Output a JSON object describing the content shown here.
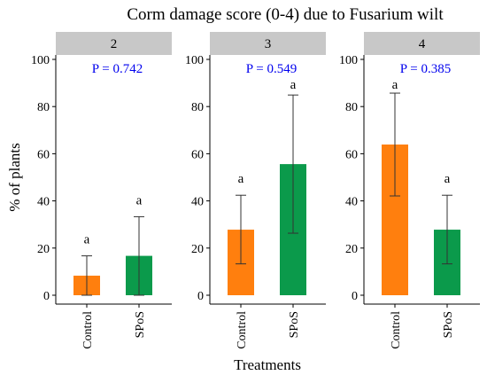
{
  "chart_data": {
    "type": "bar",
    "title": "Corm damage score (0-4) due to Fusarium wilt",
    "xlabel": "Treatments",
    "ylabel": "% of plants",
    "ylim": [
      0,
      100
    ],
    "yticks": [
      "0",
      "20",
      "40",
      "60",
      "80",
      "100"
    ],
    "categories": [
      "Control",
      "SPoS"
    ],
    "colors": {
      "Control": "#ff7f0e",
      "SPoS": "#0b9a4b",
      "pval": "#0000ee",
      "strip": "#c8c8c8"
    },
    "panels": [
      {
        "facet": "2",
        "p_label": "P = 0.742",
        "values": [
          8.3,
          16.7
        ],
        "error_low": [
          0,
          0
        ],
        "error_high": [
          16.7,
          33.3
        ],
        "sig_letters": [
          "a",
          "a"
        ]
      },
      {
        "facet": "3",
        "p_label": "P = 0.549",
        "values": [
          27.8,
          55.6
        ],
        "error_low": [
          13.3,
          26.3
        ],
        "error_high": [
          42.4,
          84.9
        ],
        "sig_letters": [
          "a",
          "a"
        ]
      },
      {
        "facet": "4",
        "p_label": "P = 0.385",
        "values": [
          63.9,
          27.8
        ],
        "error_low": [
          42.1,
          13.3
        ],
        "error_high": [
          85.7,
          42.4
        ],
        "sig_letters": [
          "a",
          "a"
        ]
      }
    ]
  }
}
